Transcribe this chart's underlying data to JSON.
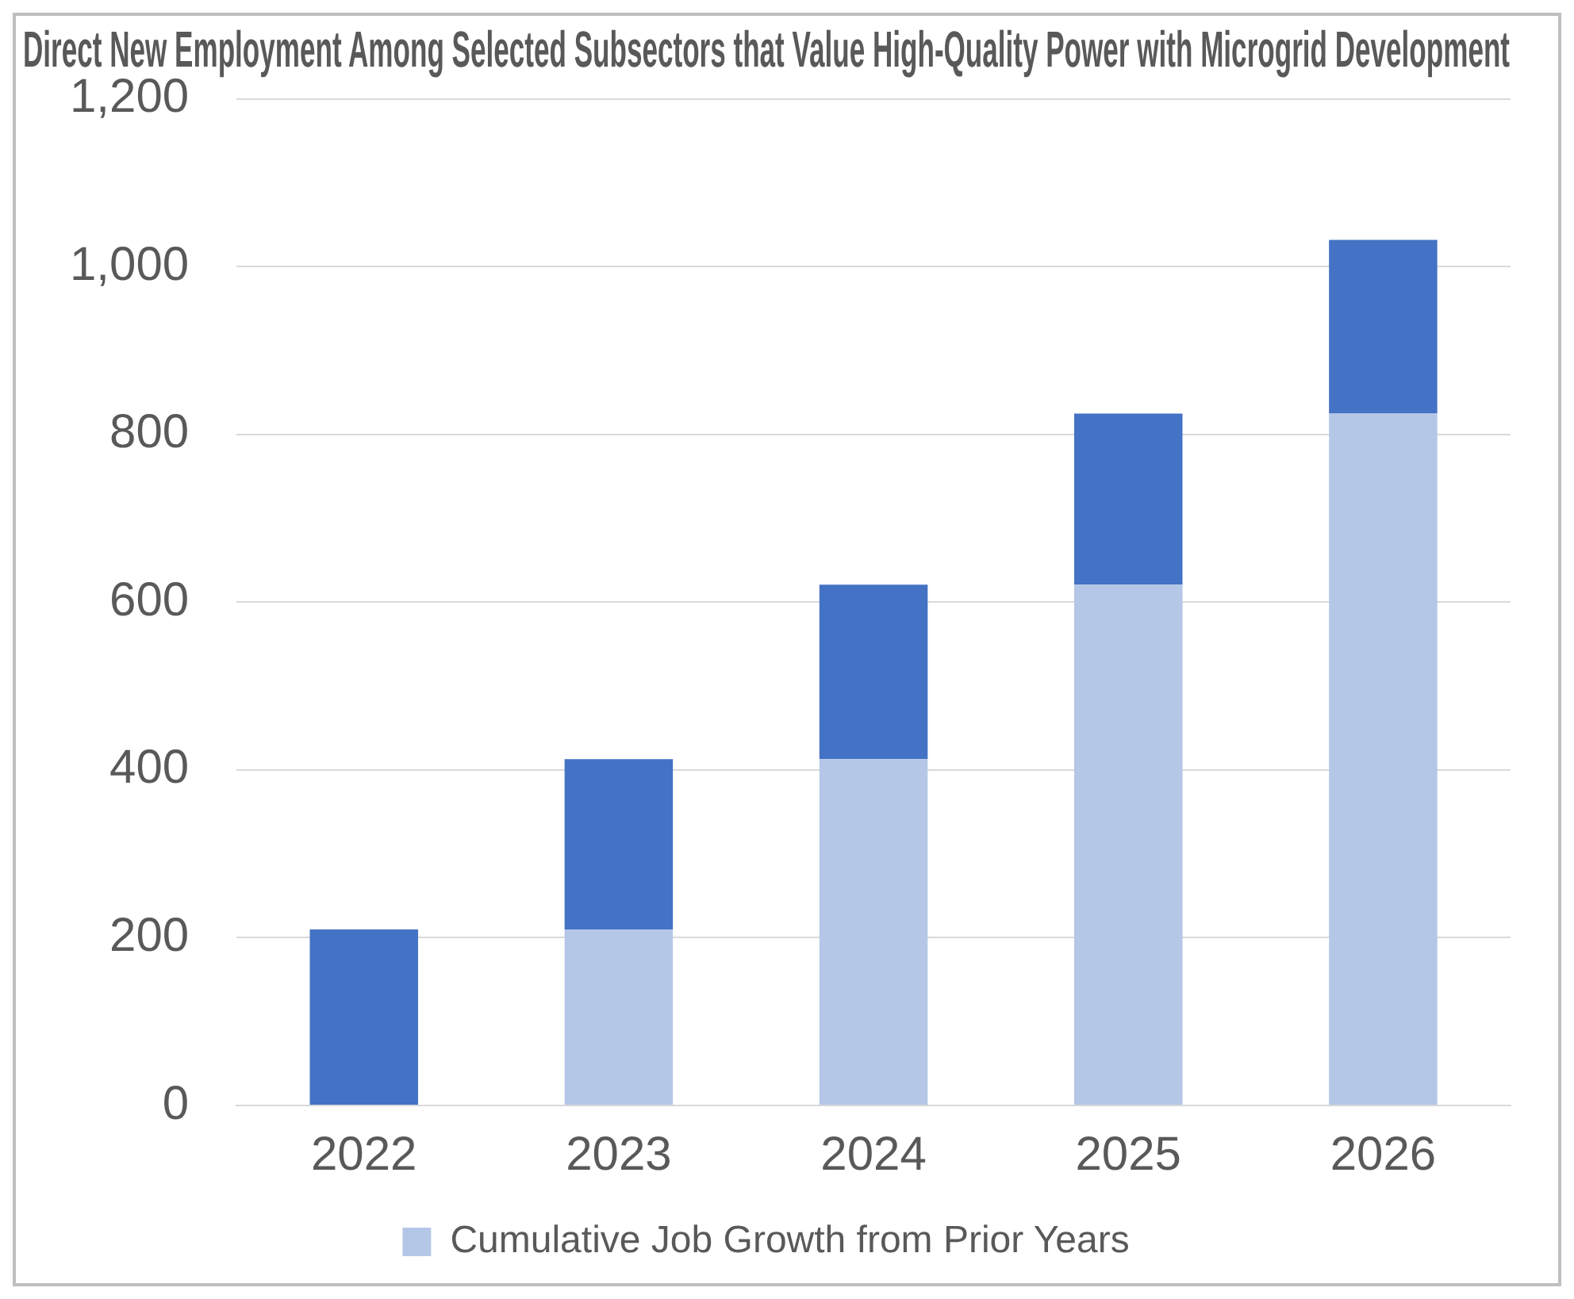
{
  "chart_data": {
    "type": "bar",
    "title": "Direct New Employment Among Selected Subsectors that Value High-Quality Power with Microgrid Development",
    "categories": [
      "2022",
      "2023",
      "2024",
      "2025",
      "2026"
    ],
    "stacked": true,
    "series": [
      {
        "name": "Cumulative Job Growth from Prior Years",
        "color": "#b4c7e7",
        "values": [
          0,
          210,
          413,
          621,
          825
        ]
      },
      {
        "color": "#4472c4",
        "values": [
          210,
          203,
          208,
          204,
          207
        ]
      }
    ],
    "ylim": [
      0,
      1200
    ],
    "yticks": [
      {
        "value": 0,
        "label": "0"
      },
      {
        "value": 200,
        "label": "200"
      },
      {
        "value": 400,
        "label": "400"
      },
      {
        "value": 600,
        "label": "600"
      },
      {
        "value": 800,
        "label": "800"
      },
      {
        "value": 1000,
        "label": "1,000"
      },
      {
        "value": 1200,
        "label": "1,200"
      }
    ],
    "grid": "y",
    "legend": "bottom"
  }
}
